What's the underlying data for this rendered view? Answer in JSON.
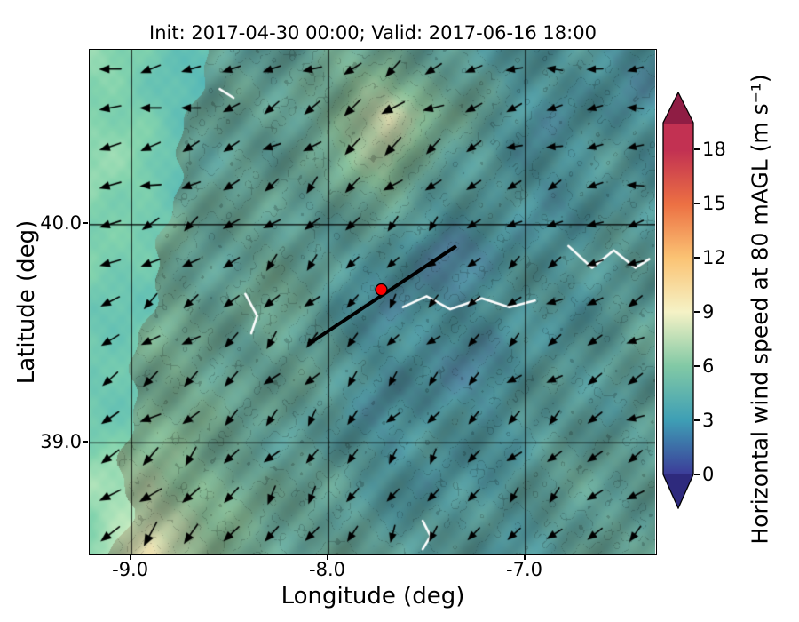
{
  "chart_data": {
    "type": "heatmap",
    "subtype": "wind-speed-map-with-quiver-arrows",
    "title": "Init: 2017-04-30 00:00; Valid: 2017-06-16 18:00",
    "xlabel": "Longitude (deg)",
    "ylabel": "Latitude (deg)",
    "xlim": [
      -9.21,
      -6.34
    ],
    "ylim": [
      38.49,
      40.8
    ],
    "grid": true,
    "xticks": [
      {
        "value": -9.0,
        "label": "-9.0"
      },
      {
        "value": -8.0,
        "label": "-8.0"
      },
      {
        "value": -7.0,
        "label": "-7.0"
      }
    ],
    "yticks": [
      {
        "value": 40.0,
        "label": "40.0"
      },
      {
        "value": 39.0,
        "label": "39.0"
      }
    ],
    "colorbar": {
      "label": "Horizontal wind speed at 80 mAGL (m s⁻¹)",
      "ticks": [
        0,
        3,
        6,
        9,
        12,
        15,
        18
      ],
      "position": "right",
      "extend": "both",
      "stops": [
        {
          "value": 0,
          "color": "#3c3d99"
        },
        {
          "value": 3,
          "color": "#3e9fb5"
        },
        {
          "value": 6,
          "color": "#82c9a5"
        },
        {
          "value": 9,
          "color": "#f5f2c6"
        },
        {
          "value": 12,
          "color": "#fbc374"
        },
        {
          "value": 15,
          "color": "#ec7043"
        },
        {
          "value": 18,
          "color": "#c23152"
        }
      ],
      "over_color": "#8f1d44",
      "under_color": "#2e2a7d"
    },
    "speed_grid": {
      "units": "m/s",
      "lons": [
        -9.2,
        -8.9,
        -8.6,
        -8.3,
        -8.0,
        -7.7,
        -7.4,
        -7.1,
        -6.8,
        -6.5
      ],
      "lats": [
        40.8,
        40.5,
        40.2,
        39.9,
        39.6,
        39.3,
        39.0,
        38.8,
        38.5
      ],
      "values_m_s": [
        [
          6.0,
          5.5,
          4.5,
          4.0,
          4.5,
          5.0,
          4.0,
          3.5,
          3.0,
          3.0
        ],
        [
          6.0,
          5.5,
          4.0,
          4.5,
          5.5,
          8.5,
          5.0,
          3.5,
          3.0,
          3.0
        ],
        [
          6.5,
          5.5,
          4.5,
          4.0,
          5.0,
          6.0,
          4.0,
          3.0,
          3.0,
          3.5
        ],
        [
          6.0,
          5.0,
          4.5,
          4.5,
          4.0,
          3.0,
          2.2,
          3.0,
          3.5,
          3.5
        ],
        [
          5.5,
          5.0,
          4.5,
          5.0,
          4.0,
          2.4,
          3.0,
          3.0,
          3.5,
          4.0
        ],
        [
          5.0,
          5.5,
          5.0,
          4.5,
          4.0,
          3.0,
          2.5,
          3.0,
          3.5,
          4.0
        ],
        [
          5.5,
          6.0,
          5.0,
          4.5,
          3.5,
          3.0,
          3.0,
          3.5,
          4.0,
          4.0
        ],
        [
          6.5,
          7.5,
          5.5,
          5.0,
          4.0,
          3.5,
          3.0,
          3.5,
          4.0,
          4.5
        ],
        [
          6.0,
          9.0,
          6.0,
          5.0,
          4.5,
          4.0,
          3.5,
          3.5,
          4.0,
          4.5
        ]
      ]
    },
    "quiver": {
      "color": "#000000",
      "angles_deg_ccw_from_east": [
        [
          176,
          186,
          204,
          214,
          198,
          186,
          178
        ],
        [
          190,
          202,
          216,
          226,
          212,
          196,
          186
        ],
        [
          200,
          212,
          222,
          230,
          220,
          206,
          196
        ],
        [
          210,
          220,
          228,
          233,
          226,
          216,
          206
        ],
        [
          214,
          224,
          232,
          236,
          230,
          220,
          211
        ],
        [
          216,
          228,
          236,
          239,
          233,
          226,
          215
        ]
      ]
    },
    "coastline": [
      {
        "lat": 40.8,
        "lon": -8.62
      },
      {
        "lat": 40.4,
        "lon": -8.73
      },
      {
        "lat": 40.1,
        "lon": -8.8
      },
      {
        "lat": 39.8,
        "lon": -8.86
      },
      {
        "lat": 39.5,
        "lon": -8.95
      },
      {
        "lat": 39.2,
        "lon": -9.0
      },
      {
        "lat": 38.9,
        "lon": -9.04
      },
      {
        "lat": 38.7,
        "lon": -9.0
      },
      {
        "lat": 38.49,
        "lon": -9.12
      }
    ],
    "water_features": [
      {
        "name": "river-center",
        "points": [
          [
            -7.62,
            39.62
          ],
          [
            -7.5,
            39.67
          ],
          [
            -7.38,
            39.61
          ],
          [
            -7.22,
            39.66
          ],
          [
            -7.08,
            39.62
          ],
          [
            -6.95,
            39.65
          ]
        ]
      },
      {
        "name": "river-east",
        "points": [
          [
            -6.78,
            39.9
          ],
          [
            -6.66,
            39.8
          ],
          [
            -6.55,
            39.88
          ],
          [
            -6.44,
            39.8
          ],
          [
            -6.37,
            39.84
          ]
        ]
      },
      {
        "name": "river-west",
        "points": [
          [
            -8.42,
            39.68
          ],
          [
            -8.36,
            39.58
          ],
          [
            -8.39,
            39.5
          ]
        ]
      },
      {
        "name": "reservoir-south",
        "points": [
          [
            -7.52,
            38.64
          ],
          [
            -7.48,
            38.57
          ],
          [
            -7.52,
            38.51
          ]
        ]
      },
      {
        "name": "lagoon-north",
        "points": [
          [
            -8.55,
            40.62
          ],
          [
            -8.48,
            40.58
          ]
        ]
      }
    ],
    "transect": {
      "start_lon_lat": [
        -8.1,
        39.45
      ],
      "end_lon_lat": [
        -7.35,
        39.9
      ],
      "color": "#000000"
    },
    "marker": {
      "lon": -7.73,
      "lat": 39.7,
      "color": "#ff0000",
      "edge_color": "#000000"
    }
  }
}
